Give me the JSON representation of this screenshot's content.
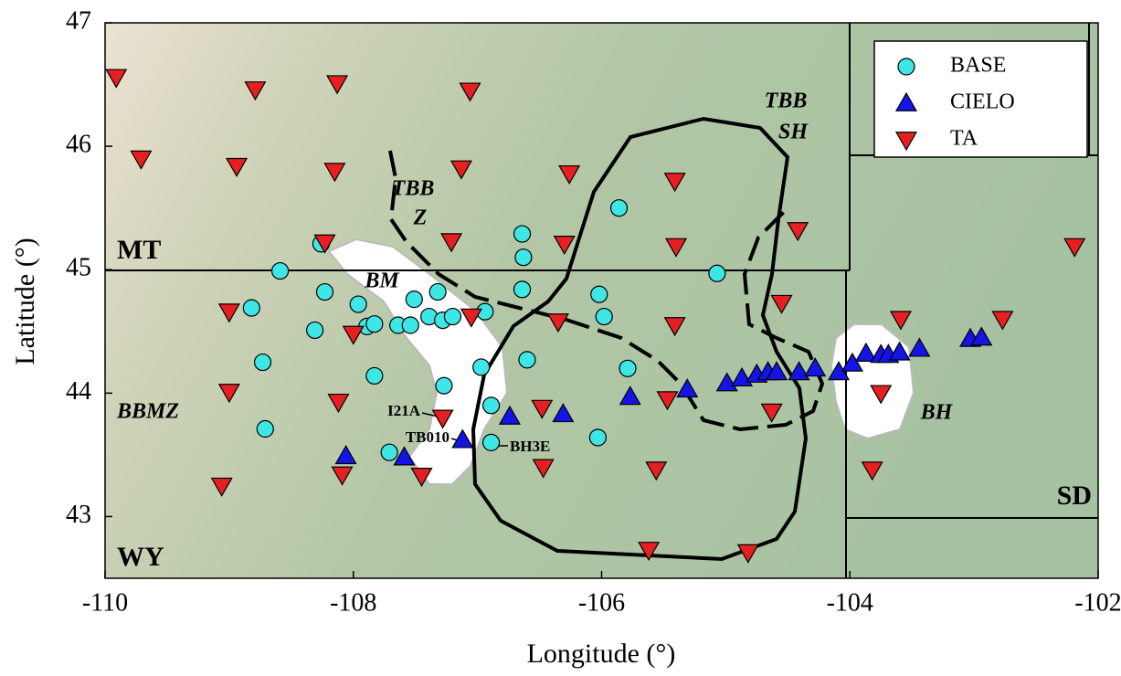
{
  "chart_data": {
    "type": "scatter",
    "xlabel": "Longitude (°)",
    "ylabel": "Latitude (°)",
    "xlim": [
      -110,
      -102
    ],
    "ylim": [
      42.5,
      47
    ],
    "xticks": [
      -110,
      -108,
      -106,
      -104,
      -102
    ],
    "yticks": [
      43,
      44,
      45,
      46,
      47
    ],
    "legend": "upper right",
    "series": [
      {
        "name": "BASE",
        "color": "#3ee6e6",
        "marker": "circle",
        "x": [
          -108.59,
          -108.26,
          -108.82,
          -108.23,
          -108.31,
          -107.96,
          -107.89,
          -107.83,
          -107.64,
          -107.54,
          -107.51,
          -107.39,
          -107.32,
          -107.28,
          -107.2,
          -106.94,
          -108.73,
          -107.83,
          -107.27,
          -106.97,
          -106.89,
          -106.6,
          -108.71,
          -107.71,
          -106.89,
          -106.64,
          -106.63,
          -106.64,
          -106.02,
          -105.98,
          -105.86,
          -105.79,
          -106.03,
          -105.07
        ],
        "y": [
          44.99,
          45.21,
          44.69,
          44.82,
          44.51,
          44.72,
          44.54,
          44.56,
          44.55,
          44.55,
          44.76,
          44.62,
          44.82,
          44.59,
          44.62,
          44.66,
          44.25,
          44.14,
          44.06,
          44.21,
          43.9,
          44.27,
          43.71,
          43.52,
          43.6,
          45.29,
          45.1,
          44.84,
          44.8,
          44.62,
          45.5,
          44.2,
          43.64,
          44.97
        ]
      },
      {
        "name": "CIELO",
        "color": "#1414e6",
        "marker": "triangle-up",
        "x": [
          -108.06,
          -107.59,
          -107.12,
          -106.74,
          -106.31,
          -105.77,
          -105.31,
          -104.99,
          -104.87,
          -104.75,
          -104.66,
          -104.59,
          -104.41,
          -104.28,
          -104.09,
          -103.98,
          -103.87,
          -103.75,
          -103.69,
          -103.6,
          -103.44,
          -103.03,
          -102.94
        ],
        "y": [
          43.49,
          43.48,
          43.62,
          43.81,
          43.83,
          43.97,
          44.03,
          44.08,
          44.12,
          44.15,
          44.17,
          44.17,
          44.17,
          44.2,
          44.17,
          44.24,
          44.32,
          44.31,
          44.31,
          44.33,
          44.36,
          44.44,
          44.45
        ]
      },
      {
        "name": "TA",
        "color": "#e62020",
        "marker": "triangle-down",
        "x": [
          -109.91,
          -109.71,
          -108.79,
          -108.13,
          -108.94,
          -108.15,
          -107.06,
          -107.13,
          -108.23,
          -107.21,
          -106.26,
          -106.3,
          -105.41,
          -105.4,
          -104.42,
          -102.19,
          -109.0,
          -108.0,
          -107.05,
          -106.35,
          -105.41,
          -104.55,
          -103.59,
          -102.77,
          -109.0,
          -108.12,
          -107.28,
          -106.48,
          -105.47,
          -104.63,
          -103.75,
          -109.06,
          -108.09,
          -107.45,
          -106.47,
          -105.56,
          -103.82,
          -105.62,
          -104.82
        ],
        "y": [
          46.56,
          45.9,
          46.46,
          46.51,
          45.84,
          45.8,
          46.45,
          45.82,
          45.22,
          45.23,
          45.78,
          45.21,
          45.72,
          45.19,
          45.32,
          45.19,
          44.66,
          44.48,
          44.62,
          44.58,
          44.55,
          44.73,
          44.6,
          44.6,
          44.01,
          43.93,
          43.8,
          43.88,
          43.95,
          43.85,
          44.0,
          43.25,
          43.34,
          43.33,
          43.4,
          43.38,
          43.38,
          42.73,
          42.71
        ]
      }
    ],
    "annotations": [
      "MT",
      "WY",
      "SD",
      "BBMZ",
      "BM",
      "TBB",
      "Z",
      "TBB",
      "SH",
      "BH",
      "I21A",
      "TB010",
      "BH3E"
    ]
  }
}
